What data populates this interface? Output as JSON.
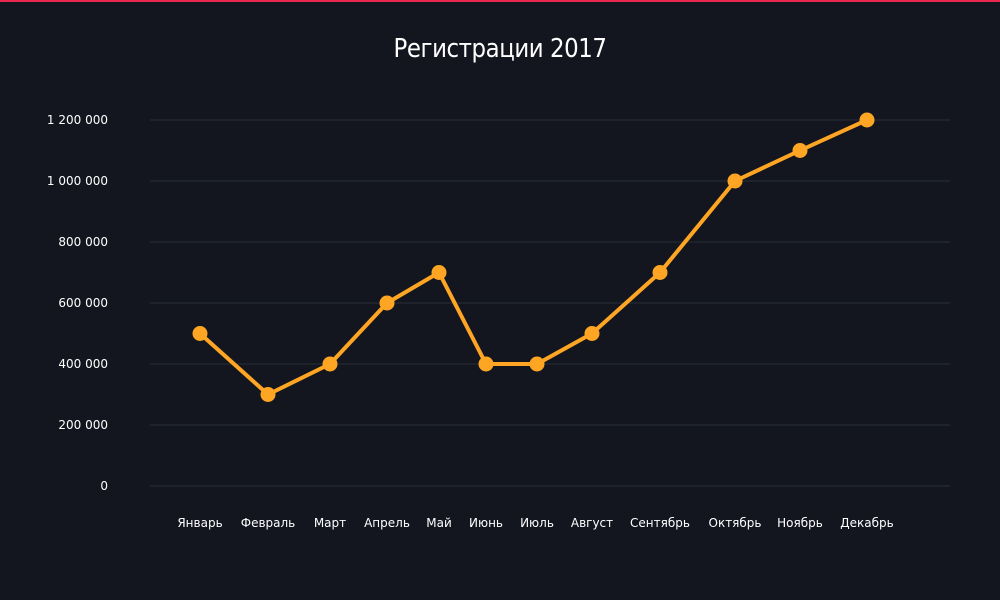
{
  "header": {
    "title": "Регистрации 2017"
  },
  "colors": {
    "accent_bar": "#e8284f",
    "line": "#ffa524",
    "background": "#13161f",
    "grid": "#2a2d36"
  },
  "chart_data": {
    "type": "line",
    "title": "Регистрации 2017",
    "xlabel": "",
    "ylabel": "",
    "categories": [
      "Январь",
      "Февраль",
      "Март",
      "Апрель",
      "Май",
      "Июнь",
      "Июль",
      "Август",
      "Сентябрь",
      "Октябрь",
      "Ноябрь",
      "Декабрь"
    ],
    "series": [
      {
        "name": "Регистрации",
        "values": [
          500000,
          300000,
          400000,
          600000,
          700000,
          400000,
          400000,
          500000,
          700000,
          1000000,
          1100000,
          1200000
        ]
      }
    ],
    "yticks": [
      0,
      200000,
      400000,
      600000,
      800000,
      1000000,
      1200000
    ],
    "ytick_labels": [
      "0",
      "200 000",
      "400 000",
      "600 000",
      "800 000",
      "1 000 000",
      "1 200 000"
    ],
    "ylim": [
      0,
      1200000
    ],
    "grid": true,
    "legend": "none"
  }
}
